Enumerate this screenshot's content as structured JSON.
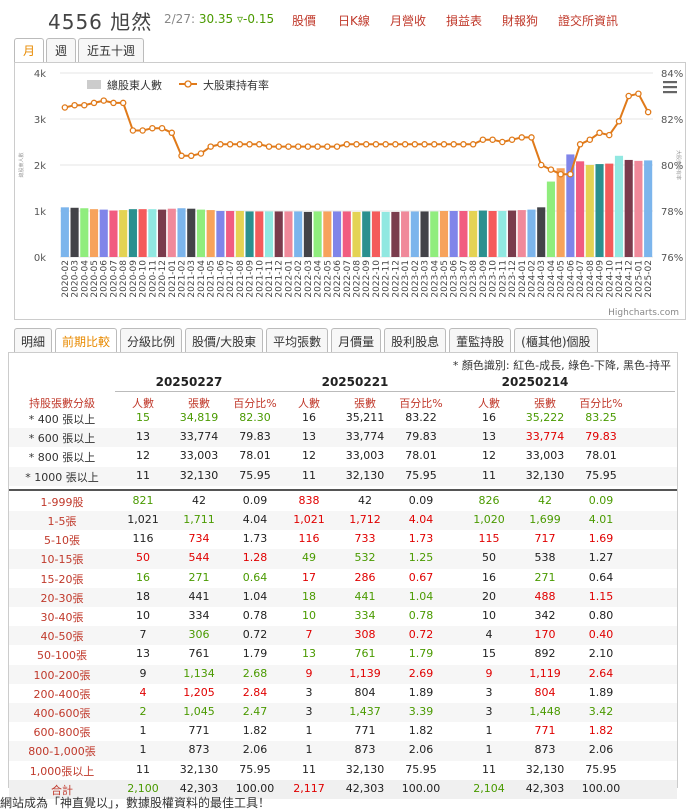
{
  "header": {
    "stock": "4556 旭然",
    "date": "2/27:",
    "price": "30.35",
    "change": "▿-0.15",
    "nav": [
      "股價",
      "日K線",
      "月營收",
      "損益表",
      "財報狗",
      "證交所資訊"
    ]
  },
  "period_tabs": [
    "月",
    "週",
    "近五十週"
  ],
  "chart_data": {
    "type": "bar",
    "legend": [
      "總股東人數",
      "大股東持有率"
    ],
    "y_left": {
      "ticks": [
        "4k",
        "3k",
        "2k",
        "1k",
        "0k"
      ],
      "range": [
        0,
        4000
      ],
      "label": "總股東人數"
    },
    "y_right": {
      "ticks": [
        "84%",
        "82%",
        "80%",
        "78%",
        "76%"
      ],
      "range": [
        76,
        84
      ],
      "label": "大股東持有率"
    },
    "credit": "Highcharts.com",
    "categories": [
      "2020-02",
      "2020-03",
      "2020-04",
      "2020-05",
      "2020-06",
      "2020-07",
      "2020-08",
      "2020-09",
      "2020-10",
      "2020-11",
      "2020-12",
      "2021-01",
      "2021-02",
      "2021-03",
      "2021-04",
      "2021-05",
      "2021-06",
      "2021-07",
      "2021-08",
      "2021-09",
      "2021-10",
      "2021-11",
      "2021-12",
      "2022-01",
      "2022-02",
      "2022-03",
      "2022-04",
      "2022-05",
      "2022-06",
      "2022-07",
      "2022-08",
      "2022-09",
      "2022-10",
      "2022-11",
      "2022-12",
      "2023-01",
      "2023-02",
      "2023-03",
      "2023-04",
      "2023-05",
      "2023-06",
      "2023-07",
      "2023-08",
      "2023-09",
      "2023-10",
      "2023-11",
      "2023-12",
      "2024-01",
      "2024-02",
      "2024-03",
      "2024-04",
      "2024-05",
      "2024-06",
      "2024-07",
      "2024-08",
      "2024-09",
      "2024-10",
      "2024-11",
      "2024-12",
      "2025-01",
      "2025-02"
    ],
    "bars": [
      1080,
      1070,
      1060,
      1040,
      1030,
      1010,
      1020,
      1040,
      1040,
      1040,
      1030,
      1050,
      1060,
      1050,
      1030,
      1020,
      1000,
      1000,
      1000,
      990,
      990,
      990,
      990,
      990,
      990,
      980,
      990,
      990,
      990,
      990,
      980,
      990,
      990,
      980,
      980,
      990,
      990,
      990,
      990,
      1000,
      1000,
      1000,
      1000,
      1010,
      1000,
      1000,
      1010,
      1020,
      1030,
      1080,
      1640,
      1930,
      2230,
      2080,
      2000,
      2020,
      2030,
      2200,
      2110,
      2090,
      2100
    ],
    "line": [
      82.5,
      82.6,
      82.6,
      82.7,
      82.8,
      82.7,
      82.7,
      81.5,
      81.5,
      81.6,
      81.6,
      81.4,
      80.4,
      80.4,
      80.5,
      80.8,
      80.9,
      80.9,
      80.9,
      80.9,
      80.9,
      80.8,
      80.8,
      80.8,
      80.8,
      80.8,
      80.8,
      80.8,
      80.8,
      80.9,
      80.9,
      80.9,
      80.9,
      80.9,
      80.9,
      80.9,
      80.9,
      80.9,
      80.9,
      80.9,
      80.9,
      80.9,
      80.9,
      81.1,
      81.1,
      81.0,
      81.1,
      81.2,
      81.2,
      80.0,
      79.8,
      79.6,
      79.6,
      80.9,
      81.1,
      81.4,
      81.3,
      81.9,
      83.0,
      83.1,
      82.3
    ]
  },
  "table_tabs": [
    "明細",
    "前期比較",
    "分級比例",
    "股價/大股東",
    "平均張數",
    "月價量",
    "股利股息",
    "董監持股",
    "(櫃其他)個股"
  ],
  "table": {
    "note": "* 顏色識別: 紅色-成長, 綠色-下降, 黑色-持平",
    "dates": [
      "20250227",
      "20250221",
      "20250214"
    ],
    "col_label": "持股張數分級",
    "sub_headers": [
      "人數",
      "張數",
      "百分比%"
    ],
    "rows": [
      {
        "label": "* 400 張以上",
        "sum": true,
        "c": [
          [
            "15",
            "g"
          ],
          [
            "34,819",
            "g"
          ],
          [
            "82.30",
            "g"
          ],
          [
            "16",
            "k"
          ],
          [
            "35,211",
            "k"
          ],
          [
            "83.22",
            "k"
          ],
          [
            "16",
            "k"
          ],
          [
            "35,222",
            "g"
          ],
          [
            "83.25",
            "g"
          ]
        ]
      },
      {
        "label": "* 600 張以上",
        "sum": true,
        "c": [
          [
            "13",
            "k"
          ],
          [
            "33,774",
            "k"
          ],
          [
            "79.83",
            "k"
          ],
          [
            "13",
            "k"
          ],
          [
            "33,774",
            "k"
          ],
          [
            "79.83",
            "k"
          ],
          [
            "13",
            "k"
          ],
          [
            "33,774",
            "r"
          ],
          [
            "79.83",
            "r"
          ]
        ]
      },
      {
        "label": "* 800 張以上",
        "sum": true,
        "c": [
          [
            "12",
            "k"
          ],
          [
            "33,003",
            "k"
          ],
          [
            "78.01",
            "k"
          ],
          [
            "12",
            "k"
          ],
          [
            "33,003",
            "k"
          ],
          [
            "78.01",
            "k"
          ],
          [
            "12",
            "k"
          ],
          [
            "33,003",
            "k"
          ],
          [
            "78.01",
            "k"
          ]
        ]
      },
      {
        "label": "* 1000 張以上",
        "sum": true,
        "c": [
          [
            "11",
            "k"
          ],
          [
            "32,130",
            "k"
          ],
          [
            "75.95",
            "k"
          ],
          [
            "11",
            "k"
          ],
          [
            "32,130",
            "k"
          ],
          [
            "75.95",
            "k"
          ],
          [
            "11",
            "k"
          ],
          [
            "32,130",
            "k"
          ],
          [
            "75.95",
            "k"
          ]
        ]
      },
      {
        "label": "1-999股",
        "c": [
          [
            "821",
            "g"
          ],
          [
            "42",
            "k"
          ],
          [
            "0.09",
            "k"
          ],
          [
            "838",
            "r"
          ],
          [
            "42",
            "k"
          ],
          [
            "0.09",
            "k"
          ],
          [
            "826",
            "g"
          ],
          [
            "42",
            "g"
          ],
          [
            "0.09",
            "g"
          ]
        ]
      },
      {
        "label": "1-5張",
        "c": [
          [
            "1,021",
            "k"
          ],
          [
            "1,711",
            "g"
          ],
          [
            "4.04",
            "k"
          ],
          [
            "1,021",
            "r"
          ],
          [
            "1,712",
            "r"
          ],
          [
            "4.04",
            "r"
          ],
          [
            "1,020",
            "g"
          ],
          [
            "1,699",
            "g"
          ],
          [
            "4.01",
            "g"
          ]
        ]
      },
      {
        "label": "5-10張",
        "c": [
          [
            "116",
            "k"
          ],
          [
            "734",
            "r"
          ],
          [
            "1.73",
            "k"
          ],
          [
            "116",
            "r"
          ],
          [
            "733",
            "r"
          ],
          [
            "1.73",
            "r"
          ],
          [
            "115",
            "r"
          ],
          [
            "717",
            "r"
          ],
          [
            "1.69",
            "r"
          ]
        ]
      },
      {
        "label": "10-15張",
        "c": [
          [
            "50",
            "r"
          ],
          [
            "544",
            "r"
          ],
          [
            "1.28",
            "r"
          ],
          [
            "49",
            "g"
          ],
          [
            "532",
            "g"
          ],
          [
            "1.25",
            "g"
          ],
          [
            "50",
            "k"
          ],
          [
            "538",
            "k"
          ],
          [
            "1.27",
            "k"
          ]
        ]
      },
      {
        "label": "15-20張",
        "c": [
          [
            "16",
            "g"
          ],
          [
            "271",
            "g"
          ],
          [
            "0.64",
            "g"
          ],
          [
            "17",
            "r"
          ],
          [
            "286",
            "r"
          ],
          [
            "0.67",
            "r"
          ],
          [
            "16",
            "k"
          ],
          [
            "271",
            "g"
          ],
          [
            "0.64",
            "k"
          ]
        ]
      },
      {
        "label": "20-30張",
        "c": [
          [
            "18",
            "k"
          ],
          [
            "441",
            "k"
          ],
          [
            "1.04",
            "k"
          ],
          [
            "18",
            "g"
          ],
          [
            "441",
            "g"
          ],
          [
            "1.04",
            "g"
          ],
          [
            "20",
            "k"
          ],
          [
            "488",
            "r"
          ],
          [
            "1.15",
            "r"
          ]
        ]
      },
      {
        "label": "30-40張",
        "c": [
          [
            "10",
            "k"
          ],
          [
            "334",
            "k"
          ],
          [
            "0.78",
            "k"
          ],
          [
            "10",
            "g"
          ],
          [
            "334",
            "g"
          ],
          [
            "0.78",
            "g"
          ],
          [
            "10",
            "k"
          ],
          [
            "342",
            "k"
          ],
          [
            "0.80",
            "k"
          ]
        ]
      },
      {
        "label": "40-50張",
        "c": [
          [
            "7",
            "k"
          ],
          [
            "306",
            "g"
          ],
          [
            "0.72",
            "k"
          ],
          [
            "7",
            "r"
          ],
          [
            "308",
            "r"
          ],
          [
            "0.72",
            "r"
          ],
          [
            "4",
            "k"
          ],
          [
            "170",
            "r"
          ],
          [
            "0.40",
            "r"
          ]
        ]
      },
      {
        "label": "50-100張",
        "c": [
          [
            "13",
            "k"
          ],
          [
            "761",
            "k"
          ],
          [
            "1.79",
            "k"
          ],
          [
            "13",
            "g"
          ],
          [
            "761",
            "g"
          ],
          [
            "1.79",
            "g"
          ],
          [
            "15",
            "k"
          ],
          [
            "892",
            "k"
          ],
          [
            "2.10",
            "k"
          ]
        ]
      },
      {
        "label": "100-200張",
        "c": [
          [
            "9",
            "k"
          ],
          [
            "1,134",
            "g"
          ],
          [
            "2.68",
            "g"
          ],
          [
            "9",
            "r"
          ],
          [
            "1,139",
            "r"
          ],
          [
            "2.69",
            "r"
          ],
          [
            "9",
            "r"
          ],
          [
            "1,119",
            "r"
          ],
          [
            "2.64",
            "r"
          ]
        ]
      },
      {
        "label": "200-400張",
        "c": [
          [
            "4",
            "r"
          ],
          [
            "1,205",
            "r"
          ],
          [
            "2.84",
            "r"
          ],
          [
            "3",
            "k"
          ],
          [
            "804",
            "k"
          ],
          [
            "1.89",
            "k"
          ],
          [
            "3",
            "k"
          ],
          [
            "804",
            "r"
          ],
          [
            "1.89",
            "k"
          ]
        ]
      },
      {
        "label": "400-600張",
        "c": [
          [
            "2",
            "g"
          ],
          [
            "1,045",
            "g"
          ],
          [
            "2.47",
            "g"
          ],
          [
            "3",
            "k"
          ],
          [
            "1,437",
            "g"
          ],
          [
            "3.39",
            "g"
          ],
          [
            "3",
            "k"
          ],
          [
            "1,448",
            "g"
          ],
          [
            "3.42",
            "g"
          ]
        ]
      },
      {
        "label": "600-800張",
        "c": [
          [
            "1",
            "k"
          ],
          [
            "771",
            "k"
          ],
          [
            "1.82",
            "k"
          ],
          [
            "1",
            "k"
          ],
          [
            "771",
            "k"
          ],
          [
            "1.82",
            "k"
          ],
          [
            "1",
            "k"
          ],
          [
            "771",
            "r"
          ],
          [
            "1.82",
            "r"
          ]
        ]
      },
      {
        "label": "800-1,000張",
        "c": [
          [
            "1",
            "k"
          ],
          [
            "873",
            "k"
          ],
          [
            "2.06",
            "k"
          ],
          [
            "1",
            "k"
          ],
          [
            "873",
            "k"
          ],
          [
            "2.06",
            "k"
          ],
          [
            "1",
            "k"
          ],
          [
            "873",
            "k"
          ],
          [
            "2.06",
            "k"
          ]
        ]
      },
      {
        "label": "1,000張以上",
        "c": [
          [
            "11",
            "k"
          ],
          [
            "32,130",
            "k"
          ],
          [
            "75.95",
            "k"
          ],
          [
            "11",
            "k"
          ],
          [
            "32,130",
            "k"
          ],
          [
            "75.95",
            "k"
          ],
          [
            "11",
            "k"
          ],
          [
            "32,130",
            "k"
          ],
          [
            "75.95",
            "k"
          ]
        ]
      },
      {
        "label": "合計",
        "total": true,
        "c": [
          [
            "2,100",
            "g"
          ],
          [
            "42,303",
            "k"
          ],
          [
            "100.00",
            "k"
          ],
          [
            "2,117",
            "r"
          ],
          [
            "42,303",
            "k"
          ],
          [
            "100.00",
            "k"
          ],
          [
            "2,104",
            "g"
          ],
          [
            "42,303",
            "k"
          ],
          [
            "100.00",
            "k"
          ]
        ]
      }
    ]
  },
  "footer": "網站成為「神直覺以」，數據股權資料的最佳工具！"
}
